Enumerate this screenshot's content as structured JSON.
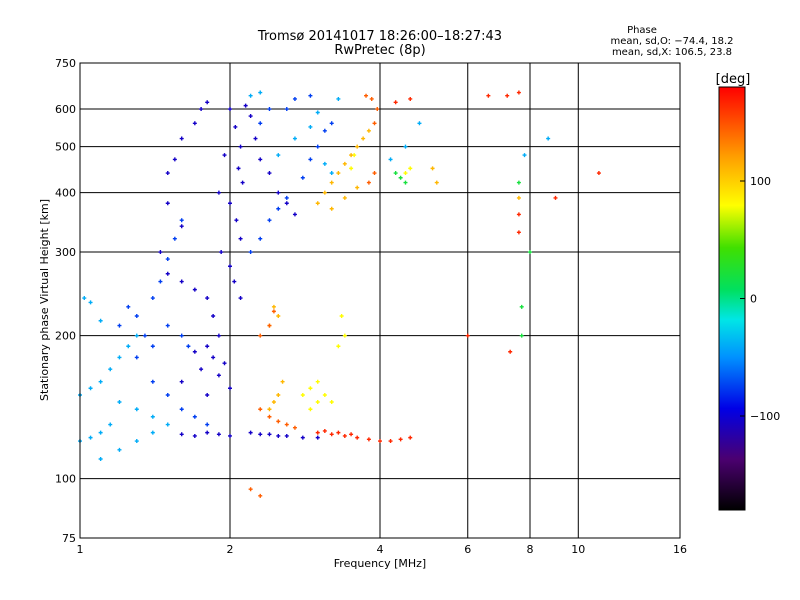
{
  "chart_data": {
    "type": "scatter",
    "title": "Tromsø 20141017 18:26:00–18:27:43",
    "subtitle": "RwPretec (8p)",
    "xlabel": "Frequency [MHz]",
    "ylabel": "Stationary phase Virtual Height [km]",
    "x_scale": "log",
    "y_scale": "log",
    "xlim": [
      1,
      16
    ],
    "ylim": [
      75,
      750
    ],
    "x_ticks": [
      1,
      2,
      4,
      6,
      8,
      10,
      16
    ],
    "x_tick_labels": [
      "1",
      "2",
      "4",
      "6",
      "8",
      "10",
      "16"
    ],
    "y_ticks": [
      75,
      100,
      200,
      300,
      400,
      500,
      600,
      750
    ],
    "y_tick_labels": [
      "75",
      "100",
      "200",
      "300",
      "400",
      "500",
      "600",
      "750"
    ],
    "grid": true,
    "phase_info": {
      "title": "Phase",
      "line_o": "mean, sd,O: −74.4, 18.2",
      "line_x": "mean, sd,X: 106.5, 23.8"
    },
    "colorbar": {
      "label": "[deg]",
      "range": [
        -180,
        180
      ],
      "tick_values": [
        100,
        0,
        -100
      ],
      "tick_labels": [
        "100",
        "0",
        "−100"
      ]
    },
    "series": [
      {
        "color_value": -105,
        "points": [
          [
            2.0,
            600
          ],
          [
            2.05,
            550
          ],
          [
            2.1,
            500
          ],
          [
            1.95,
            480
          ],
          [
            2.08,
            450
          ],
          [
            2.12,
            420
          ],
          [
            1.9,
            400
          ],
          [
            2.0,
            380
          ],
          [
            2.06,
            350
          ],
          [
            2.1,
            320
          ],
          [
            1.92,
            300
          ],
          [
            2.0,
            280
          ],
          [
            2.04,
            260
          ],
          [
            2.1,
            240
          ],
          [
            1.85,
            220
          ],
          [
            1.9,
            200
          ],
          [
            1.8,
            190
          ],
          [
            1.85,
            180
          ],
          [
            1.95,
            175
          ],
          [
            1.7,
            185
          ],
          [
            1.75,
            170
          ],
          [
            1.6,
            160
          ],
          [
            1.9,
            165
          ],
          [
            1.8,
            150
          ],
          [
            2.0,
            155
          ],
          [
            2.2,
            125
          ],
          [
            2.3,
            124
          ],
          [
            2.4,
            124
          ],
          [
            2.5,
            123
          ],
          [
            2.6,
            123
          ],
          [
            2.8,
            122
          ],
          [
            3.0,
            122
          ],
          [
            2.0,
            123
          ],
          [
            1.9,
            124
          ],
          [
            1.8,
            125
          ],
          [
            1.7,
            123
          ],
          [
            1.6,
            124
          ],
          [
            2.15,
            610
          ],
          [
            2.2,
            580
          ],
          [
            2.25,
            520
          ],
          [
            2.3,
            470
          ],
          [
            2.4,
            440
          ],
          [
            2.5,
            400
          ],
          [
            2.6,
            380
          ],
          [
            2.7,
            360
          ],
          [
            1.6,
            520
          ],
          [
            1.7,
            560
          ],
          [
            1.75,
            600
          ],
          [
            1.8,
            620
          ],
          [
            1.5,
            440
          ],
          [
            1.55,
            470
          ],
          [
            1.5,
            380
          ],
          [
            1.6,
            340
          ],
          [
            1.45,
            300
          ],
          [
            1.5,
            270
          ],
          [
            1.6,
            260
          ],
          [
            1.7,
            250
          ],
          [
            1.8,
            240
          ]
        ]
      },
      {
        "color_value": -75,
        "points": [
          [
            1.4,
            240
          ],
          [
            1.45,
            260
          ],
          [
            1.5,
            290
          ],
          [
            1.55,
            320
          ],
          [
            1.6,
            350
          ],
          [
            1.35,
            200
          ],
          [
            1.4,
            190
          ],
          [
            1.3,
            180
          ],
          [
            1.3,
            220
          ],
          [
            1.25,
            230
          ],
          [
            1.2,
            210
          ],
          [
            1.5,
            210
          ],
          [
            1.6,
            200
          ],
          [
            1.65,
            190
          ],
          [
            1.4,
            160
          ],
          [
            1.5,
            150
          ],
          [
            1.6,
            140
          ],
          [
            1.7,
            135
          ],
          [
            1.8,
            130
          ],
          [
            2.2,
            300
          ],
          [
            2.3,
            320
          ],
          [
            2.4,
            350
          ],
          [
            2.5,
            370
          ],
          [
            2.6,
            390
          ],
          [
            2.8,
            430
          ],
          [
            2.9,
            470
          ],
          [
            3.0,
            500
          ],
          [
            3.1,
            540
          ],
          [
            3.2,
            560
          ],
          [
            2.6,
            600
          ],
          [
            2.7,
            630
          ],
          [
            2.9,
            640
          ],
          [
            2.3,
            560
          ],
          [
            2.4,
            600
          ]
        ]
      },
      {
        "color_value": -40,
        "points": [
          [
            1.0,
            120
          ],
          [
            1.05,
            122
          ],
          [
            1.1,
            125
          ],
          [
            1.15,
            130
          ],
          [
            1.0,
            150
          ],
          [
            1.05,
            155
          ],
          [
            1.1,
            160
          ],
          [
            1.15,
            170
          ],
          [
            1.2,
            180
          ],
          [
            1.25,
            190
          ],
          [
            1.3,
            200
          ],
          [
            1.02,
            240
          ],
          [
            1.05,
            235
          ],
          [
            1.1,
            215
          ],
          [
            1.2,
            145
          ],
          [
            1.3,
            140
          ],
          [
            1.4,
            135
          ],
          [
            1.5,
            130
          ],
          [
            1.1,
            110
          ],
          [
            1.2,
            115
          ],
          [
            1.3,
            120
          ],
          [
            1.4,
            125
          ],
          [
            2.5,
            480
          ],
          [
            2.7,
            520
          ],
          [
            2.9,
            550
          ],
          [
            3.0,
            590
          ],
          [
            3.3,
            630
          ],
          [
            3.1,
            460
          ],
          [
            3.2,
            440
          ],
          [
            4.2,
            470
          ],
          [
            4.5,
            500
          ],
          [
            4.8,
            560
          ],
          [
            7.8,
            480
          ],
          [
            8.7,
            520
          ],
          [
            2.2,
            640
          ],
          [
            2.3,
            650
          ]
        ]
      },
      {
        "color_value": 20,
        "points": [
          [
            4.3,
            440
          ],
          [
            4.4,
            430
          ],
          [
            4.5,
            420
          ],
          [
            7.6,
            420
          ],
          [
            7.7,
            230
          ],
          [
            7.7,
            200
          ],
          [
            8.0,
            300
          ]
        ]
      },
      {
        "color_value": 80,
        "points": [
          [
            2.8,
            150
          ],
          [
            2.9,
            155
          ],
          [
            3.0,
            160
          ],
          [
            3.1,
            150
          ],
          [
            3.2,
            145
          ],
          [
            2.9,
            140
          ],
          [
            3.0,
            145
          ],
          [
            3.3,
            190
          ],
          [
            3.4,
            200
          ],
          [
            3.35,
            220
          ],
          [
            3.5,
            450
          ],
          [
            3.55,
            480
          ],
          [
            4.5,
            440
          ],
          [
            4.6,
            450
          ]
        ]
      },
      {
        "color_value": 110,
        "points": [
          [
            3.0,
            380
          ],
          [
            3.1,
            400
          ],
          [
            3.2,
            420
          ],
          [
            3.3,
            440
          ],
          [
            3.4,
            460
          ],
          [
            3.5,
            480
          ],
          [
            3.6,
            500
          ],
          [
            3.7,
            520
          ],
          [
            3.8,
            540
          ],
          [
            3.2,
            370
          ],
          [
            3.4,
            390
          ],
          [
            3.6,
            410
          ],
          [
            2.4,
            140
          ],
          [
            2.45,
            145
          ],
          [
            2.5,
            150
          ],
          [
            2.55,
            160
          ],
          [
            2.5,
            220
          ],
          [
            2.45,
            230
          ],
          [
            2.4,
            210
          ],
          [
            5.1,
            450
          ],
          [
            5.2,
            420
          ],
          [
            7.6,
            390
          ]
        ]
      },
      {
        "color_value": 145,
        "points": [
          [
            3.9,
            560
          ],
          [
            3.95,
            600
          ],
          [
            3.85,
            630
          ],
          [
            3.75,
            640
          ],
          [
            3.8,
            420
          ],
          [
            3.9,
            440
          ],
          [
            2.3,
            140
          ],
          [
            2.4,
            135
          ],
          [
            2.5,
            132
          ],
          [
            2.6,
            130
          ],
          [
            2.7,
            128
          ],
          [
            2.3,
            200
          ],
          [
            2.4,
            210
          ],
          [
            2.45,
            225
          ],
          [
            2.2,
            95
          ],
          [
            2.3,
            92
          ]
        ]
      },
      {
        "color_value": 165,
        "points": [
          [
            3.0,
            125
          ],
          [
            3.2,
            124
          ],
          [
            3.4,
            123
          ],
          [
            3.6,
            122
          ],
          [
            3.8,
            121
          ],
          [
            4.0,
            120
          ],
          [
            4.2,
            120
          ],
          [
            4.4,
            121
          ],
          [
            4.6,
            122
          ],
          [
            3.1,
            126
          ],
          [
            3.3,
            125
          ],
          [
            3.5,
            124
          ],
          [
            4.3,
            620
          ],
          [
            4.6,
            630
          ],
          [
            6.6,
            640
          ],
          [
            7.2,
            640
          ],
          [
            7.6,
            650
          ],
          [
            11.0,
            440
          ],
          [
            9.0,
            390
          ],
          [
            7.6,
            360
          ],
          [
            7.6,
            330
          ],
          [
            6.0,
            200
          ],
          [
            7.3,
            185
          ]
        ]
      }
    ]
  }
}
